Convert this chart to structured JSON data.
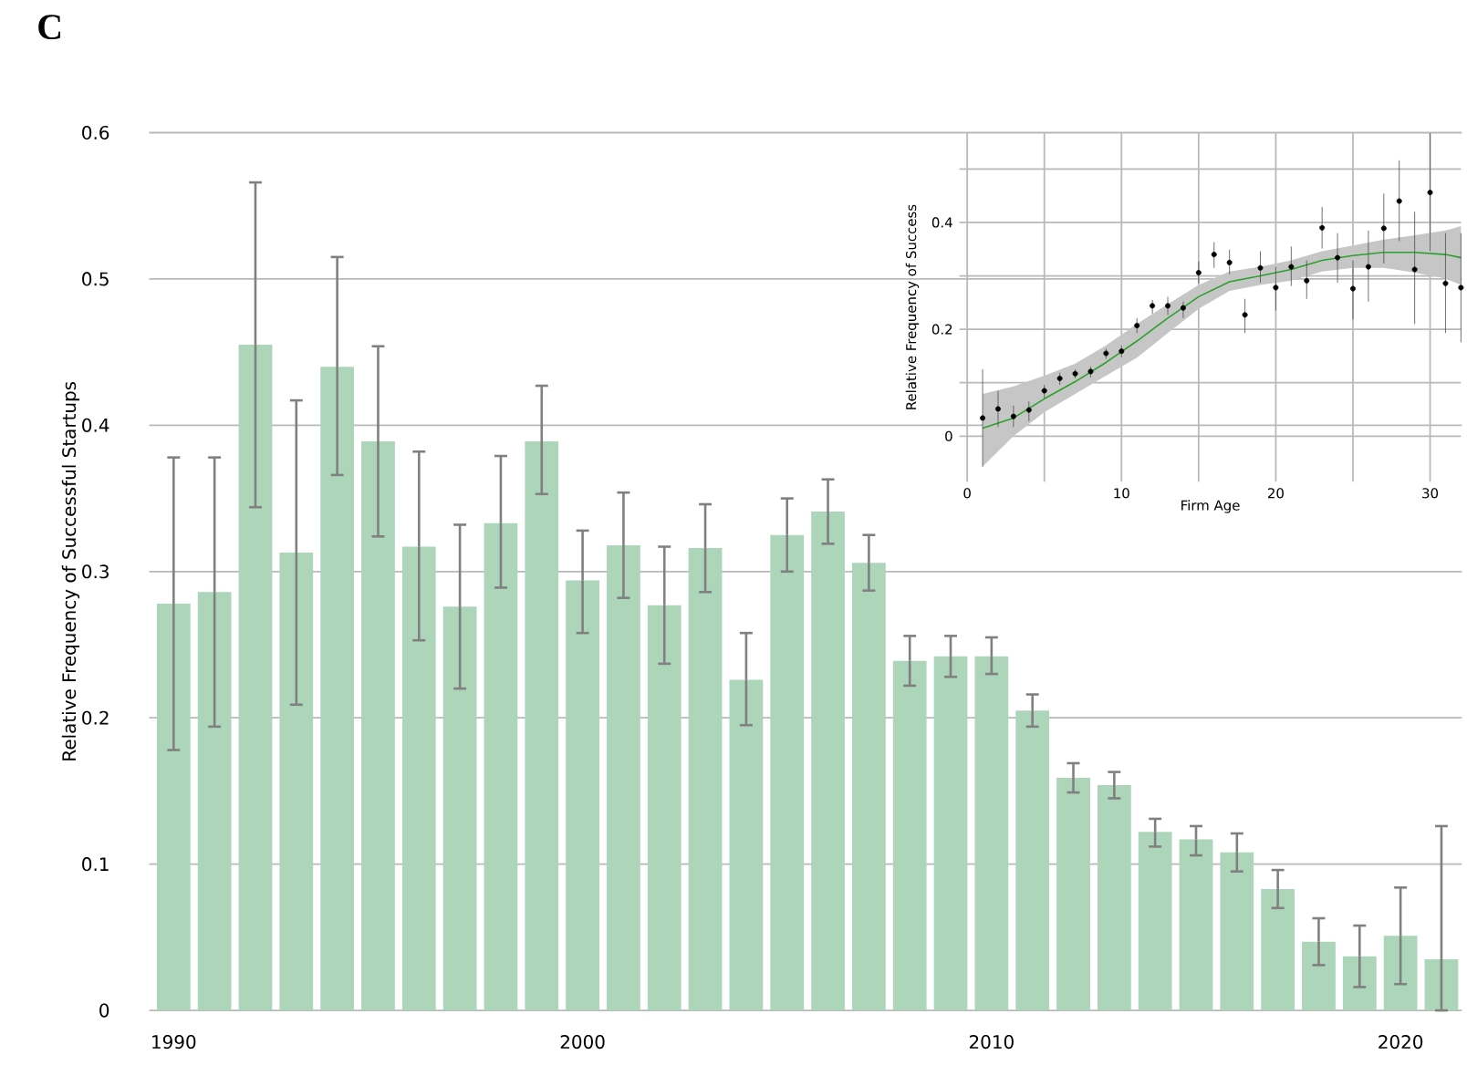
{
  "chart_data": [
    {
      "type": "bar",
      "ylabel": "Relative Frequency of Successful Startups",
      "annotations": [
        "**C**"
      ],
      "x": [
        1990,
        1991,
        1992,
        1993,
        1994,
        1995,
        1996,
        1997,
        1998,
        1999,
        2000,
        2001,
        2002,
        2003,
        2004,
        2005,
        2006,
        2007,
        2008,
        2009,
        2010,
        2011,
        2012,
        2013,
        2014,
        2015,
        2016,
        2017,
        2018,
        2019,
        2020,
        2021
      ],
      "values": [
        0.278,
        0.286,
        0.455,
        0.313,
        0.44,
        0.389,
        0.317,
        0.276,
        0.333,
        0.389,
        0.294,
        0.318,
        0.277,
        0.316,
        0.226,
        0.325,
        0.341,
        0.306,
        0.239,
        0.242,
        0.242,
        0.205,
        0.159,
        0.154,
        0.122,
        0.117,
        0.108,
        0.083,
        0.047,
        0.037,
        0.051,
        0.035
      ],
      "errors": [
        [
          0.178,
          0.378
        ],
        [
          0.194,
          0.378
        ],
        [
          0.344,
          0.566
        ],
        [
          0.209,
          0.417
        ],
        [
          0.366,
          0.515
        ],
        [
          0.324,
          0.454
        ],
        [
          0.253,
          0.382
        ],
        [
          0.22,
          0.332
        ],
        [
          0.289,
          0.379
        ],
        [
          0.353,
          0.427
        ],
        [
          0.258,
          0.328
        ],
        [
          0.282,
          0.354
        ],
        [
          0.237,
          0.317
        ],
        [
          0.286,
          0.346
        ],
        [
          0.195,
          0.258
        ],
        [
          0.3,
          0.35
        ],
        [
          0.319,
          0.363
        ],
        [
          0.287,
          0.325
        ],
        [
          0.222,
          0.256
        ],
        [
          0.228,
          0.256
        ],
        [
          0.23,
          0.255
        ],
        [
          0.194,
          0.216
        ],
        [
          0.149,
          0.169
        ],
        [
          0.145,
          0.163
        ],
        [
          0.112,
          0.131
        ],
        [
          0.106,
          0.126
        ],
        [
          0.095,
          0.121
        ],
        [
          0.07,
          0.096
        ],
        [
          0.031,
          0.063
        ],
        [
          0.016,
          0.058
        ],
        [
          0.018,
          0.084
        ],
        [
          0.0,
          0.126
        ]
      ],
      "color": "#acd5b9",
      "xlim": [
        1989.4,
        2021.5
      ],
      "ylim": [
        0,
        0.6
      ],
      "xticks": [
        1990,
        2000,
        2010,
        2020
      ],
      "yticks": [
        0,
        0.1,
        0.2,
        0.3,
        0.4,
        0.5,
        0.6
      ],
      "grid": "y"
    },
    {
      "type": "scatter",
      "xlabel": "Firm Age",
      "ylabel": "Relative Frequency of Success",
      "series": [
        {
          "color": "#000000",
          "marker": "circle",
          "x": [
            1,
            2,
            3,
            4,
            5,
            6,
            7,
            8,
            9,
            10,
            11,
            12,
            13,
            14,
            15,
            16,
            17,
            18,
            19,
            20,
            21,
            22,
            23,
            24,
            25,
            26,
            27,
            28,
            29,
            30,
            31,
            32
          ],
          "values": [
            0.034,
            0.051,
            0.037,
            0.049,
            0.085,
            0.108,
            0.117,
            0.121,
            0.155,
            0.159,
            0.207,
            0.244,
            0.244,
            0.24,
            0.306,
            0.34,
            0.325,
            0.227,
            0.315,
            0.278,
            0.317,
            0.291,
            0.39,
            0.334,
            0.276,
            0.317,
            0.389,
            0.44,
            0.312,
            0.456,
            0.286,
            0.278
          ],
          "errors": [
            [
              -0.057,
              0.125
            ],
            [
              0.017,
              0.085
            ],
            [
              0.017,
              0.057
            ],
            [
              0.028,
              0.065
            ],
            [
              0.071,
              0.096
            ],
            [
              0.096,
              0.119
            ],
            [
              0.108,
              0.125
            ],
            [
              0.11,
              0.13
            ],
            [
              0.145,
              0.164
            ],
            [
              0.147,
              0.17
            ],
            [
              0.193,
              0.221
            ],
            [
              0.229,
              0.255
            ],
            [
              0.227,
              0.261
            ],
            [
              0.221,
              0.252
            ],
            [
              0.286,
              0.327
            ],
            [
              0.315,
              0.363
            ],
            [
              0.303,
              0.349
            ],
            [
              0.193,
              0.257
            ],
            [
              0.287,
              0.346
            ],
            [
              0.235,
              0.317
            ],
            [
              0.281,
              0.355
            ],
            [
              0.257,
              0.329
            ],
            [
              0.351,
              0.429
            ],
            [
              0.287,
              0.38
            ],
            [
              0.219,
              0.329
            ],
            [
              0.252,
              0.385
            ],
            [
              0.323,
              0.454
            ],
            [
              0.365,
              0.516
            ],
            [
              0.21,
              0.42
            ],
            [
              0.346,
              0.567
            ],
            [
              0.193,
              0.38
            ],
            [
              0.176,
              0.38
            ]
          ]
        },
        {
          "type": "line",
          "color": "#2ca02c",
          "x": [
            1,
            3,
            5,
            7,
            9,
            11,
            13,
            15,
            17,
            19,
            21,
            23,
            25,
            27,
            29,
            31,
            32
          ],
          "values": [
            0.015,
            0.034,
            0.07,
            0.102,
            0.138,
            0.178,
            0.221,
            0.261,
            0.289,
            0.3,
            0.312,
            0.329,
            0.338,
            0.344,
            0.344,
            0.34,
            0.334
          ],
          "lower": [
            -0.057,
            0.0,
            0.045,
            0.079,
            0.113,
            0.147,
            0.193,
            0.238,
            0.272,
            0.283,
            0.291,
            0.308,
            0.315,
            0.315,
            0.306,
            0.295,
            0.283
          ],
          "upper": [
            0.079,
            0.093,
            0.113,
            0.136,
            0.17,
            0.21,
            0.247,
            0.283,
            0.308,
            0.317,
            0.329,
            0.346,
            0.357,
            0.368,
            0.376,
            0.385,
            0.393
          ]
        }
      ],
      "xlim": [
        -0.5,
        32
      ],
      "ylim": [
        -0.085,
        0.567
      ],
      "xticks": [
        0,
        {
          "value": 5,
          "label": null
        },
        10,
        {
          "value": 15,
          "label": null
        },
        20,
        {
          "value": 25,
          "label": null
        },
        30
      ],
      "yticks": [
        0,
        {
          "value": 0.1,
          "label": null
        },
        0.2,
        {
          "value": 0.3,
          "label": null
        },
        0.4,
        {
          "value": 0.5,
          "label": null
        }
      ],
      "grid": true
    }
  ]
}
